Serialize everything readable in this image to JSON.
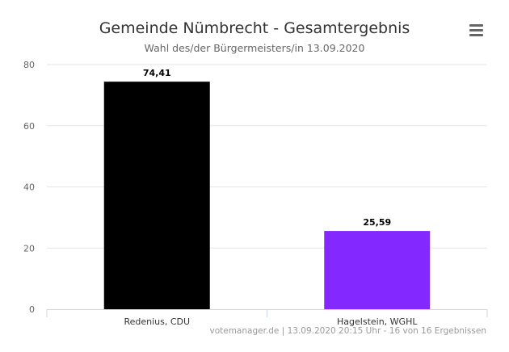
{
  "chart_data": {
    "type": "bar",
    "title": "Gemeinde Nümbrecht - Gesamtergebnis",
    "subtitle": "Wahl des/der Bürgermeisters/in 13.09.2020",
    "categories": [
      "Redenius, CDU",
      "Hagelstein, WGHL"
    ],
    "values": [
      74.41,
      25.59
    ],
    "data_labels": [
      "74,41",
      "25,59"
    ],
    "colors": [
      "#000000",
      "#8329FF"
    ],
    "ylim": [
      0,
      80
    ],
    "yticks": [
      0,
      20,
      40,
      60,
      80
    ],
    "ytick_labels": [
      "0",
      "20",
      "40",
      "60",
      "80"
    ],
    "grid": true,
    "xlabel": "",
    "ylabel": ""
  },
  "menu": {
    "icon": "hamburger-menu-icon"
  },
  "credits": "votemanager.de | 13.09.2020 20:15 Uhr - 16 von 16 Ergebnissen"
}
